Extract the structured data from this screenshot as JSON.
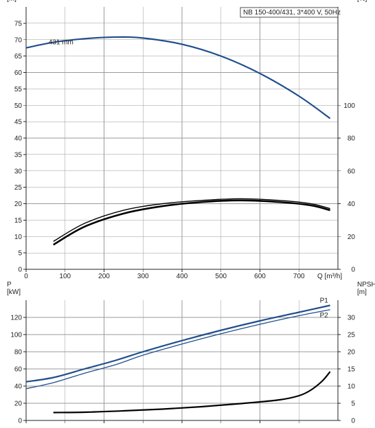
{
  "chart_data": [
    {
      "type": "line",
      "name": "head",
      "title": "NB 150-400/431, 3*400 V, 50Hz",
      "ylabel_left": "H\n[m]",
      "ylabel_right": "eta\n[%]",
      "xlabel": "Q [m³/h]",
      "xlim": [
        0,
        800
      ],
      "ylim_left": [
        0,
        80
      ],
      "ylim_right": [
        0,
        160
      ],
      "x_ticks": [
        0,
        100,
        200,
        300,
        400,
        500,
        600,
        700
      ],
      "y_ticks_left": [
        0,
        5,
        10,
        15,
        20,
        25,
        30,
        35,
        40,
        45,
        50,
        55,
        60,
        65,
        70,
        75
      ],
      "y_ticks_right": [
        0,
        20,
        40,
        60,
        80,
        100
      ],
      "grid": true,
      "series": [
        {
          "name": "431 mm",
          "axis": "left",
          "color": "#1f4e8c",
          "x": [
            0,
            70,
            150,
            230,
            300,
            400,
            500,
            600,
            700,
            780
          ],
          "y": [
            67.5,
            69.2,
            70.3,
            70.8,
            70.5,
            68.6,
            65.0,
            59.7,
            52.8,
            46.0
          ]
        },
        {
          "axis": "right",
          "color": "#000000",
          "x": [
            70,
            150,
            250,
            350,
            450,
            550,
            650,
            730,
            780
          ],
          "y": [
            17,
            28,
            36,
            40,
            42,
            43,
            42,
            40,
            37
          ]
        },
        {
          "axis": "right",
          "color": "#000000",
          "x": [
            70,
            150,
            250,
            350,
            450,
            550,
            650,
            730,
            780
          ],
          "y": [
            15,
            26,
            34,
            38.5,
            41,
            42,
            41,
            39,
            36
          ]
        }
      ]
    },
    {
      "type": "line",
      "name": "power",
      "ylabel_left": "P\n[kW]",
      "ylabel_right": "NPSH\n[m]",
      "xlim": [
        0,
        800
      ],
      "ylim_left": [
        0,
        140
      ],
      "ylim_right": [
        0,
        35
      ],
      "x_ticks": [
        0,
        100,
        200,
        300,
        400,
        500,
        600,
        700
      ],
      "y_ticks_left": [
        0,
        20,
        40,
        60,
        80,
        100,
        120
      ],
      "y_ticks_right": [
        0,
        5,
        10,
        15,
        20,
        25,
        30
      ],
      "grid": true,
      "series": [
        {
          "name": "P1",
          "axis": "left",
          "color": "#1f4e8c",
          "x": [
            0,
            70,
            150,
            230,
            300,
            400,
            500,
            600,
            700,
            780
          ],
          "y": [
            45,
            50,
            60,
            70,
            80,
            93,
            105,
            116,
            126,
            134
          ]
        },
        {
          "name": "P2",
          "axis": "left",
          "color": "#1f4e8c",
          "x": [
            0,
            70,
            150,
            230,
            300,
            400,
            500,
            600,
            700,
            780
          ],
          "y": [
            37,
            44,
            55,
            65,
            76,
            89,
            101,
            112,
            122,
            129
          ]
        },
        {
          "axis": "right",
          "color": "#000000",
          "x": [
            70,
            150,
            250,
            350,
            450,
            550,
            650,
            700,
            730,
            760,
            780
          ],
          "y": [
            2.3,
            2.4,
            2.8,
            3.3,
            4.0,
            4.9,
            6.0,
            7.2,
            8.8,
            11.5,
            14.2
          ]
        }
      ]
    }
  ]
}
